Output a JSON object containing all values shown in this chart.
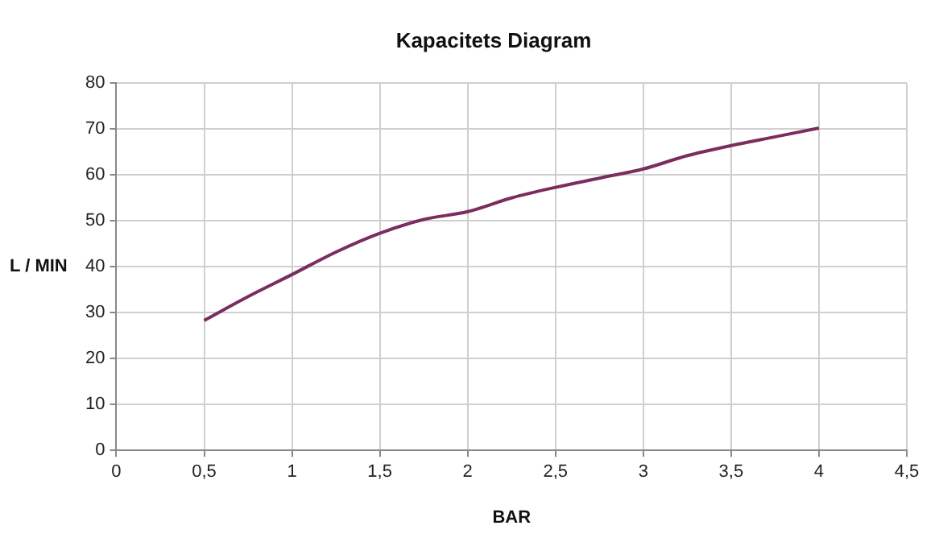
{
  "chart_data": {
    "type": "line",
    "title": "Kapacitets Diagram",
    "xlabel": "BAR",
    "ylabel": "L / MIN",
    "x": [
      0.5,
      0.75,
      1,
      1.25,
      1.5,
      1.75,
      2,
      2.25,
      2.5,
      2.75,
      3,
      3.25,
      3.5,
      3.75,
      4
    ],
    "series": [
      {
        "color": "#7b2d5e",
        "values": [
          28.3,
          33.5,
          38.3,
          43.2,
          47.3,
          50.3,
          52,
          55,
          57.3,
          59.3,
          61.3,
          64.2,
          66.4,
          68.3,
          70.2
        ]
      }
    ],
    "xlim": [
      0,
      4.5
    ],
    "xticks": [
      0,
      {
        "value": 0.5,
        "label": "0,5"
      },
      1,
      {
        "value": 1.5,
        "label": "1,5"
      },
      2,
      {
        "value": 2.5,
        "label": "2,5"
      },
      3,
      {
        "value": 3.5,
        "label": "3,5"
      },
      4,
      {
        "value": 4.5,
        "label": "4,5"
      }
    ],
    "ylim": [
      0,
      80
    ],
    "yticks": [
      0,
      10,
      20,
      30,
      40,
      50,
      60,
      70,
      80
    ],
    "grid": true,
    "legend": false,
    "marker": "none",
    "line_style": "solid"
  }
}
